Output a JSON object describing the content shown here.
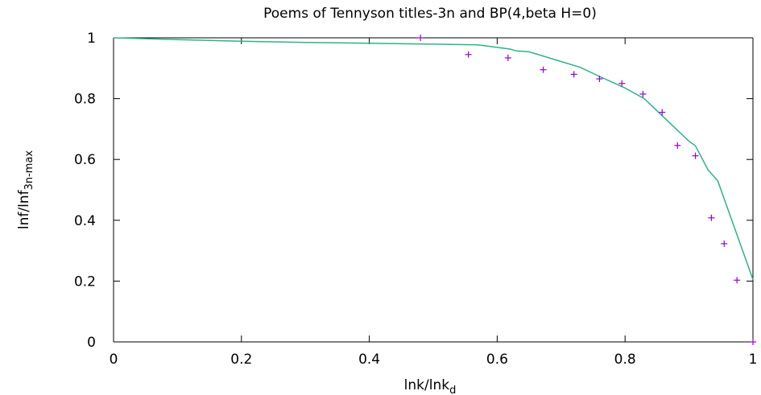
{
  "chart_data": {
    "type": "line",
    "title": "Poems of Tennyson titles-3n and BP(4,beta H=0)",
    "xlabel": {
      "main": "lnk/lnk",
      "sub": "d"
    },
    "ylabel": {
      "main": "lnf/lnf",
      "sub": "3n-max"
    },
    "xlim": [
      0,
      1
    ],
    "ylim": [
      0,
      1
    ],
    "x_ticks": [
      "0",
      "0.2",
      "0.4",
      "0.6",
      "0.8",
      "1"
    ],
    "y_ticks": [
      "0",
      "0.2",
      "0.4",
      "0.6",
      "0.8",
      "1"
    ],
    "grid": false,
    "series": [
      {
        "type": "line",
        "color": "#2db38a",
        "points": [
          [
            0,
            1
          ],
          [
            0.1,
            0.994
          ],
          [
            0.2,
            0.989
          ],
          [
            0.3,
            0.985
          ],
          [
            0.4,
            0.982
          ],
          [
            0.5,
            0.979
          ],
          [
            0.57,
            0.977
          ],
          [
            0.62,
            0.963
          ],
          [
            0.63,
            0.957
          ],
          [
            0.65,
            0.954
          ],
          [
            0.7,
            0.922
          ],
          [
            0.73,
            0.903
          ],
          [
            0.76,
            0.873
          ],
          [
            0.8,
            0.835
          ],
          [
            0.83,
            0.8
          ],
          [
            0.86,
            0.74
          ],
          [
            0.9,
            0.66
          ],
          [
            0.91,
            0.645
          ],
          [
            0.93,
            0.565
          ],
          [
            0.945,
            0.53
          ],
          [
            1,
            0.205
          ]
        ]
      },
      {
        "type": "scatter",
        "marker": "+",
        "color": "#9400d3",
        "points": [
          [
            0.48,
            1.0
          ],
          [
            0.555,
            0.945
          ],
          [
            0.617,
            0.934
          ],
          [
            0.672,
            0.895
          ],
          [
            0.72,
            0.88
          ],
          [
            0.76,
            0.865
          ],
          [
            0.795,
            0.85
          ],
          [
            0.828,
            0.815
          ],
          [
            0.858,
            0.755
          ],
          [
            0.882,
            0.646
          ],
          [
            0.91,
            0.612
          ],
          [
            0.935,
            0.408
          ],
          [
            0.955,
            0.323
          ],
          [
            0.975,
            0.203
          ],
          [
            1.0,
            0.0
          ]
        ]
      }
    ]
  }
}
